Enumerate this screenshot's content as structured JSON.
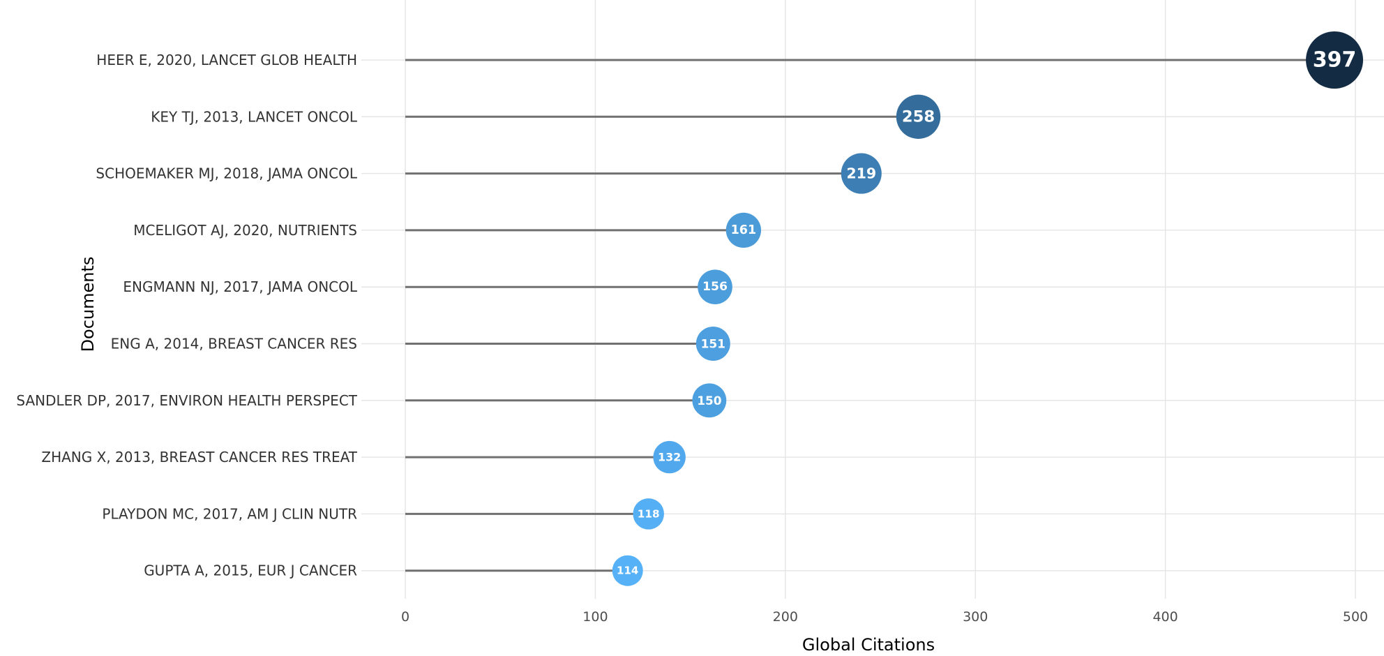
{
  "chart_data": {
    "type": "scatter",
    "subtype": "lollipop",
    "xlabel": "Global Citations",
    "ylabel": "Documents",
    "xlim": [
      0,
      500
    ],
    "x_ticks": [
      0,
      100,
      200,
      300,
      400,
      500
    ],
    "grid": true,
    "legend": "none",
    "categories": [
      "HEER E, 2020, LANCET GLOB HEALTH",
      "KEY TJ, 2013, LANCET ONCOL",
      "SCHOEMAKER MJ, 2018, JAMA ONCOL",
      "MCELIGOT AJ, 2020, NUTRIENTS",
      "ENGMANN NJ, 2017, JAMA ONCOL",
      "ENG A, 2014, BREAST CANCER RES",
      "SANDLER DP, 2017, ENVIRON HEALTH PERSPECT",
      "ZHANG X, 2013, BREAST CANCER RES TREAT",
      "PLAYDON MC, 2017, AM J CLIN NUTR",
      "GUPTA A, 2015, EUR J CANCER"
    ],
    "point_positions": [
      489,
      270,
      240,
      178,
      163,
      162,
      160,
      139,
      128,
      117
    ],
    "values": [
      397,
      258,
      219,
      161,
      156,
      151,
      150,
      132,
      118,
      114
    ],
    "color_scale": {
      "low": "#56B1F7",
      "high": "#132B43"
    }
  }
}
